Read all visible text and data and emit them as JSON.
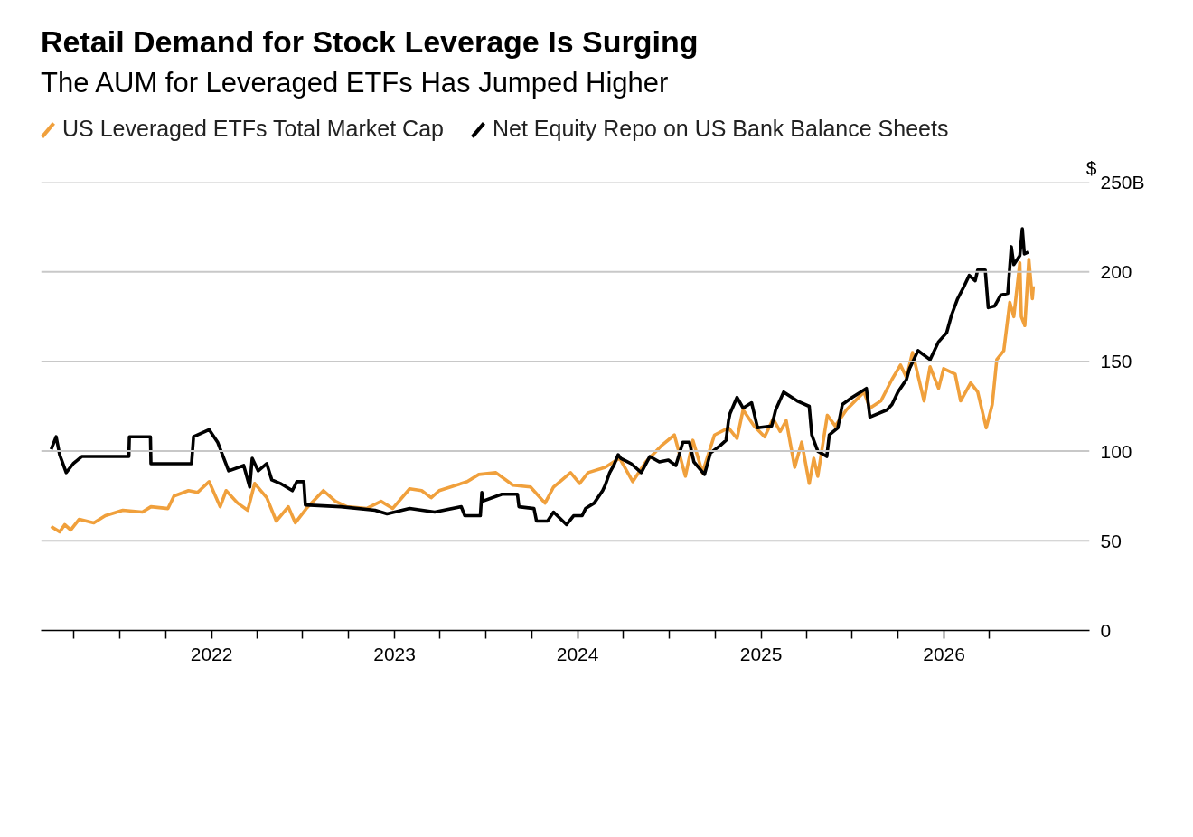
{
  "chart_data": {
    "type": "line",
    "title": "Retail Demand for Stock Leverage Is Surging",
    "subtitle": "The AUM for Leveraged ETFs Has Jumped Higher",
    "ylabel": "$",
    "legend": "top",
    "grid": "y",
    "xlim": [
      "2021-01-26",
      "2026-10-18"
    ],
    "xticks": [
      {
        "value": "2021-04-01",
        "label": null
      },
      {
        "value": "2021-07-01",
        "label": null
      },
      {
        "value": "2021-10-01",
        "label": null
      },
      {
        "value": "2022-01-01",
        "label": "2022"
      },
      {
        "value": "2022-04-01",
        "label": null
      },
      {
        "value": "2022-07-01",
        "label": null
      },
      {
        "value": "2022-10-01",
        "label": null
      },
      {
        "value": "2023-01-01",
        "label": "2023"
      },
      {
        "value": "2023-04-01",
        "label": null
      },
      {
        "value": "2023-07-01",
        "label": null
      },
      {
        "value": "2023-10-01",
        "label": null
      },
      {
        "value": "2024-01-01",
        "label": "2024"
      },
      {
        "value": "2024-04-01",
        "label": null
      },
      {
        "value": "2024-07-01",
        "label": null
      },
      {
        "value": "2024-10-01",
        "label": null
      },
      {
        "value": "2025-01-01",
        "label": "2025"
      },
      {
        "value": "2025-04-01",
        "label": null
      },
      {
        "value": "2025-07-01",
        "label": null
      },
      {
        "value": "2025-10-01",
        "label": null
      },
      {
        "value": "2026-01-01",
        "label": "2026"
      },
      {
        "value": "2026-04-01",
        "label": null
      }
    ],
    "ylim": [
      0,
      250
    ],
    "yticks": [
      0,
      50,
      100,
      150,
      200,
      {
        "value": 250,
        "label": "250B"
      }
    ],
    "series": [
      {
        "name": "US Leveraged ETFs Total Market Cap",
        "color": "#f0a03c",
        "x": [
          "2021-02-15",
          "2021-03-04",
          "2021-03-14",
          "2021-03-26",
          "2021-04-12",
          "2021-05-11",
          "2021-06-03",
          "2021-07-08",
          "2021-08-16",
          "2021-09-02",
          "2021-10-06",
          "2021-10-18",
          "2021-11-16",
          "2021-12-04",
          "2021-12-27",
          "2022-01-18",
          "2022-01-30",
          "2022-02-22",
          "2022-03-14",
          "2022-03-28",
          "2022-04-21",
          "2022-05-10",
          "2022-06-03",
          "2022-06-17",
          "2022-07-09",
          "2022-08-12",
          "2022-09-05",
          "2022-09-28",
          "2022-11-06",
          "2022-12-05",
          "2022-12-28",
          "2023-01-31",
          "2023-02-24",
          "2023-03-15",
          "2023-03-31",
          "2023-05-26",
          "2023-06-18",
          "2023-07-22",
          "2023-08-25",
          "2023-09-29",
          "2023-10-28",
          "2023-11-14",
          "2023-12-18",
          "2024-01-05",
          "2024-01-22",
          "2024-02-25",
          "2024-03-13",
          "2024-03-25",
          "2024-04-20",
          "2024-05-16",
          "2024-06-16",
          "2024-07-12",
          "2024-08-03",
          "2024-08-18",
          "2024-09-06",
          "2024-09-30",
          "2024-10-28",
          "2024-11-14",
          "2024-11-26",
          "2024-12-18",
          "2025-01-08",
          "2025-01-25",
          "2025-02-08",
          "2025-02-20",
          "2025-03-09",
          "2025-03-23",
          "2025-04-07",
          "2025-04-16",
          "2025-04-24",
          "2025-05-13",
          "2025-05-29",
          "2025-06-20",
          "2025-07-25",
          "2025-08-06",
          "2025-08-28",
          "2025-09-19",
          "2025-10-06",
          "2025-10-18",
          "2025-10-30",
          "2025-11-22",
          "2025-12-04",
          "2025-12-21",
          "2025-12-31",
          "2026-01-23",
          "2026-02-03",
          "2026-02-23",
          "2026-03-09",
          "2026-03-26",
          "2026-04-07",
          "2026-04-16",
          "2026-04-30",
          "2026-05-12",
          "2026-05-20",
          "2026-06-01",
          "2026-06-04",
          "2026-06-11",
          "2026-06-19",
          "2026-06-26",
          "2026-06-28"
        ],
        "values": [
          58,
          55,
          59,
          56,
          62,
          60,
          64,
          67,
          66,
          69,
          68,
          75,
          78,
          77,
          83,
          69,
          78,
          71,
          67,
          82,
          74,
          61,
          69,
          60,
          68,
          78,
          72,
          69,
          68,
          72,
          68,
          79,
          78,
          74,
          78,
          83,
          87,
          88,
          81,
          80,
          71,
          80,
          88,
          82,
          88,
          91,
          94,
          96,
          83,
          94,
          103,
          109,
          86,
          106,
          88,
          109,
          113,
          107,
          123,
          114,
          108,
          118,
          111,
          117,
          91,
          105,
          82,
          96,
          86,
          120,
          114,
          123,
          133,
          124,
          128,
          140,
          148,
          141,
          155,
          128,
          147,
          135,
          146,
          143,
          128,
          138,
          133,
          113,
          126,
          151,
          156,
          183,
          175,
          205,
          175,
          170,
          207,
          185,
          192
        ]
      },
      {
        "name": "Net Equity Repo on US Bank Balance Sheets",
        "color": "#000000",
        "x": [
          "2021-02-15",
          "2021-02-25",
          "2021-03-04",
          "2021-03-17",
          "2021-03-31",
          "2021-04-17",
          "2021-07-20",
          "2021-07-21",
          "2021-09-01",
          "2021-09-02",
          "2021-11-22",
          "2021-11-26",
          "2021-12-27",
          "2022-01-13",
          "2022-02-04",
          "2022-03-06",
          "2022-03-18",
          "2022-03-23",
          "2022-04-04",
          "2022-04-21",
          "2022-05-01",
          "2022-05-18",
          "2022-06-11",
          "2022-06-20",
          "2022-07-04",
          "2022-07-07",
          "2022-09-16",
          "2022-11-23",
          "2022-12-17",
          "2023-01-31",
          "2023-03-22",
          "2023-05-14",
          "2023-05-21",
          "2023-06-21",
          "2023-06-24",
          "2023-06-25",
          "2023-08-03",
          "2023-09-03",
          "2023-09-06",
          "2023-10-06",
          "2023-10-11",
          "2023-11-02",
          "2023-11-14",
          "2023-12-10",
          "2023-12-24",
          "2024-01-10",
          "2024-01-17",
          "2024-02-03",
          "2024-02-20",
          "2024-02-25",
          "2024-03-05",
          "2024-03-13",
          "2024-03-22",
          "2024-03-27",
          "2024-04-17",
          "2024-05-07",
          "2024-05-24",
          "2024-06-12",
          "2024-06-30",
          "2024-07-15",
          "2024-07-29",
          "2024-08-11",
          "2024-08-20",
          "2024-09-10",
          "2024-09-22",
          "2024-10-11",
          "2024-10-23",
          "2024-10-28",
          "2024-10-31",
          "2024-11-14",
          "2024-11-26",
          "2024-12-13",
          "2024-12-25",
          "2025-01-22",
          "2025-01-30",
          "2025-02-15",
          "2025-03-14",
          "2025-04-07",
          "2025-04-12",
          "2025-04-24",
          "2025-05-12",
          "2025-05-17",
          "2025-06-03",
          "2025-06-12",
          "2025-07-02",
          "2025-07-30",
          "2025-08-06",
          "2025-09-09",
          "2025-09-19",
          "2025-10-01",
          "2025-10-18",
          "2025-10-24",
          "2025-11-10",
          "2025-12-04",
          "2025-12-21",
          "2026-01-06",
          "2026-01-16",
          "2026-01-28",
          "2026-02-10",
          "2026-02-20",
          "2026-03-04",
          "2026-03-09",
          "2026-03-24",
          "2026-03-30",
          "2026-04-12",
          "2026-04-24",
          "2026-05-08",
          "2026-05-15",
          "2026-05-20",
          "2026-06-01",
          "2026-06-06",
          "2026-06-10",
          "2026-06-18"
        ],
        "values": [
          101,
          108,
          98,
          88,
          93,
          97,
          97,
          108,
          108,
          93,
          93,
          108,
          112,
          105,
          89,
          92,
          80,
          96,
          89,
          93,
          84,
          82,
          78,
          83,
          83,
          70,
          69,
          67,
          65,
          68,
          66,
          69,
          64,
          64,
          77,
          72,
          76,
          76,
          69,
          68,
          61,
          61,
          66,
          59,
          64,
          64,
          68,
          71,
          78,
          81,
          88,
          92,
          98,
          96,
          93,
          88,
          97,
          94,
          95,
          92,
          105,
          105,
          94,
          87,
          99,
          103,
          106,
          117,
          121,
          130,
          124,
          127,
          113,
          114,
          123,
          133,
          128,
          125,
          109,
          100,
          97,
          109,
          113,
          126,
          130,
          135,
          119,
          123,
          126,
          133,
          140,
          146,
          156,
          151,
          161,
          166,
          176,
          185,
          192,
          198,
          195,
          201,
          201,
          180,
          181,
          187,
          188,
          214,
          204,
          209,
          224,
          210,
          211
        ]
      }
    ]
  }
}
